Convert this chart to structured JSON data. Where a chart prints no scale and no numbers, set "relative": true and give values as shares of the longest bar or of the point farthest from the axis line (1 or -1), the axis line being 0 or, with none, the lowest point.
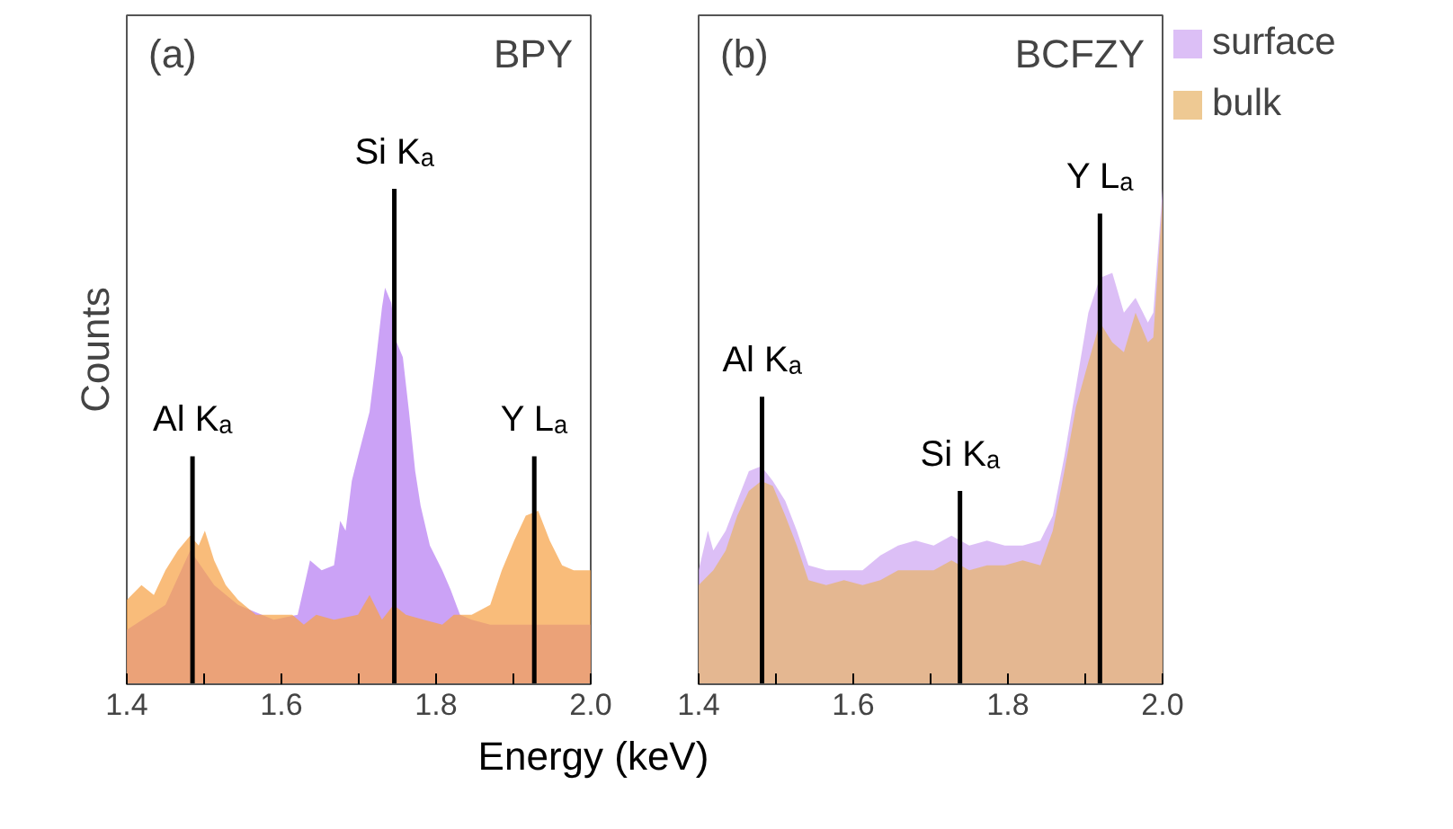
{
  "chart_data": [
    {
      "type": "area",
      "title": "(a)",
      "subtitle": "BPY",
      "xlabel": "Energy (keV)",
      "ylabel": "Counts",
      "relative": true,
      "xlim": [
        1.4,
        2.0
      ],
      "xticks": [
        1.4,
        {
          "value": 1.5,
          "label": null
        },
        1.6,
        {
          "value": 1.7,
          "label": null
        },
        1.8,
        {
          "value": 1.9,
          "label": null
        },
        {
          "value": 2.0,
          "label": "2.0"
        }
      ],
      "grid": false,
      "series": [
        {
          "color": "#b77ef2",
          "x": [
            1.4,
            1.45,
            1.482,
            1.513,
            1.544,
            1.59,
            1.621,
            1.637,
            1.652,
            1.668,
            1.676,
            1.683,
            1.691,
            1.699,
            1.714,
            1.722,
            1.73,
            1.734,
            1.742,
            1.749,
            1.757,
            1.765,
            1.773,
            1.78,
            1.792,
            1.808,
            1.819,
            1.831,
            1.846,
            1.87,
            1.916,
            1.963,
            2.0
          ],
          "values": [
            0.11,
            0.16,
            0.27,
            0.2,
            0.16,
            0.13,
            0.14,
            0.25,
            0.23,
            0.24,
            0.33,
            0.31,
            0.41,
            0.46,
            0.55,
            0.65,
            0.76,
            0.8,
            0.77,
            0.69,
            0.66,
            0.55,
            0.43,
            0.36,
            0.28,
            0.23,
            0.19,
            0.14,
            0.13,
            0.12,
            0.12,
            0.12,
            0.12
          ]
        },
        {
          "color": "#f7a247",
          "x": [
            1.4,
            1.419,
            1.435,
            1.45,
            1.466,
            1.482,
            1.493,
            1.501,
            1.513,
            1.528,
            1.544,
            1.567,
            1.59,
            1.614,
            1.629,
            1.645,
            1.668,
            1.699,
            1.714,
            1.73,
            1.745,
            1.761,
            1.784,
            1.808,
            1.823,
            1.846,
            1.87,
            1.885,
            1.901,
            1.916,
            1.932,
            1.947,
            1.963,
            1.978,
            2.0
          ],
          "values": [
            0.17,
            0.2,
            0.18,
            0.23,
            0.27,
            0.3,
            0.28,
            0.31,
            0.25,
            0.2,
            0.17,
            0.14,
            0.14,
            0.14,
            0.12,
            0.14,
            0.13,
            0.14,
            0.18,
            0.13,
            0.16,
            0.14,
            0.13,
            0.12,
            0.14,
            0.14,
            0.16,
            0.23,
            0.29,
            0.34,
            0.35,
            0.29,
            0.24,
            0.23,
            0.23
          ]
        },
        {
          "name": "Al Kₐ",
          "type": "line",
          "color": "#000000",
          "x": [
            1.485,
            1.485
          ],
          "values": [
            0,
            0.46
          ]
        },
        {
          "name": "Si Kₐ",
          "type": "line",
          "color": "#000000",
          "x": [
            1.746,
            1.746
          ],
          "values": [
            0,
            1.0
          ]
        },
        {
          "name": "Y Lₐ",
          "type": "line",
          "color": "#000000",
          "x": [
            1.927,
            1.927
          ],
          "values": [
            0,
            0.46
          ]
        }
      ]
    },
    {
      "type": "area",
      "title": "(b)",
      "subtitle": "BCFZY",
      "relative": true,
      "xlim": [
        1.4,
        2.0
      ],
      "xticks": [
        1.4,
        {
          "value": 1.5,
          "label": null
        },
        1.6,
        {
          "value": 1.7,
          "label": null
        },
        1.8,
        {
          "value": 1.9,
          "label": null
        },
        {
          "value": 2.0,
          "label": "2.0"
        }
      ],
      "grid": false,
      "legend": "right",
      "series": [
        {
          "name": "surface",
          "color": "#cfa6f2",
          "x": [
            1.4,
            1.412,
            1.419,
            1.435,
            1.45,
            1.465,
            1.481,
            1.496,
            1.512,
            1.527,
            1.542,
            1.565,
            1.588,
            1.612,
            1.635,
            1.658,
            1.681,
            1.704,
            1.727,
            1.75,
            1.773,
            1.796,
            1.819,
            1.842,
            1.858,
            1.873,
            1.888,
            1.904,
            1.919,
            1.935,
            1.95,
            1.965,
            1.981,
            1.988,
            2.0
          ],
          "values": [
            0.23,
            0.31,
            0.27,
            0.31,
            0.37,
            0.43,
            0.44,
            0.41,
            0.37,
            0.31,
            0.24,
            0.23,
            0.23,
            0.23,
            0.26,
            0.28,
            0.29,
            0.28,
            0.3,
            0.28,
            0.29,
            0.28,
            0.28,
            0.29,
            0.34,
            0.46,
            0.6,
            0.75,
            0.82,
            0.83,
            0.75,
            0.78,
            0.73,
            0.75,
            1.0
          ]
        },
        {
          "name": "bulk",
          "color": "#e8b46a",
          "x": [
            1.4,
            1.419,
            1.435,
            1.45,
            1.465,
            1.481,
            1.496,
            1.512,
            1.527,
            1.542,
            1.565,
            1.588,
            1.612,
            1.635,
            1.658,
            1.681,
            1.704,
            1.727,
            1.75,
            1.773,
            1.796,
            1.819,
            1.842,
            1.858,
            1.873,
            1.888,
            1.904,
            1.919,
            1.935,
            1.95,
            1.965,
            1.981,
            1.988,
            2.0
          ],
          "values": [
            0.2,
            0.23,
            0.27,
            0.34,
            0.39,
            0.41,
            0.4,
            0.34,
            0.28,
            0.21,
            0.2,
            0.21,
            0.2,
            0.21,
            0.23,
            0.23,
            0.23,
            0.25,
            0.23,
            0.24,
            0.24,
            0.25,
            0.24,
            0.31,
            0.43,
            0.56,
            0.65,
            0.73,
            0.69,
            0.67,
            0.75,
            0.69,
            0.7,
            0.98
          ]
        },
        {
          "name": "Al Kₐ",
          "type": "line",
          "color": "#000000",
          "x": [
            1.482,
            1.482
          ],
          "values": [
            0,
            0.58
          ]
        },
        {
          "name": "Si Kₐ",
          "type": "line",
          "color": "#000000",
          "x": [
            1.738,
            1.738
          ],
          "values": [
            0,
            0.39
          ]
        },
        {
          "name": "Y Lₐ",
          "type": "line",
          "color": "#000000",
          "x": [
            1.919,
            1.919
          ],
          "values": [
            0,
            0.95
          ]
        }
      ]
    }
  ]
}
